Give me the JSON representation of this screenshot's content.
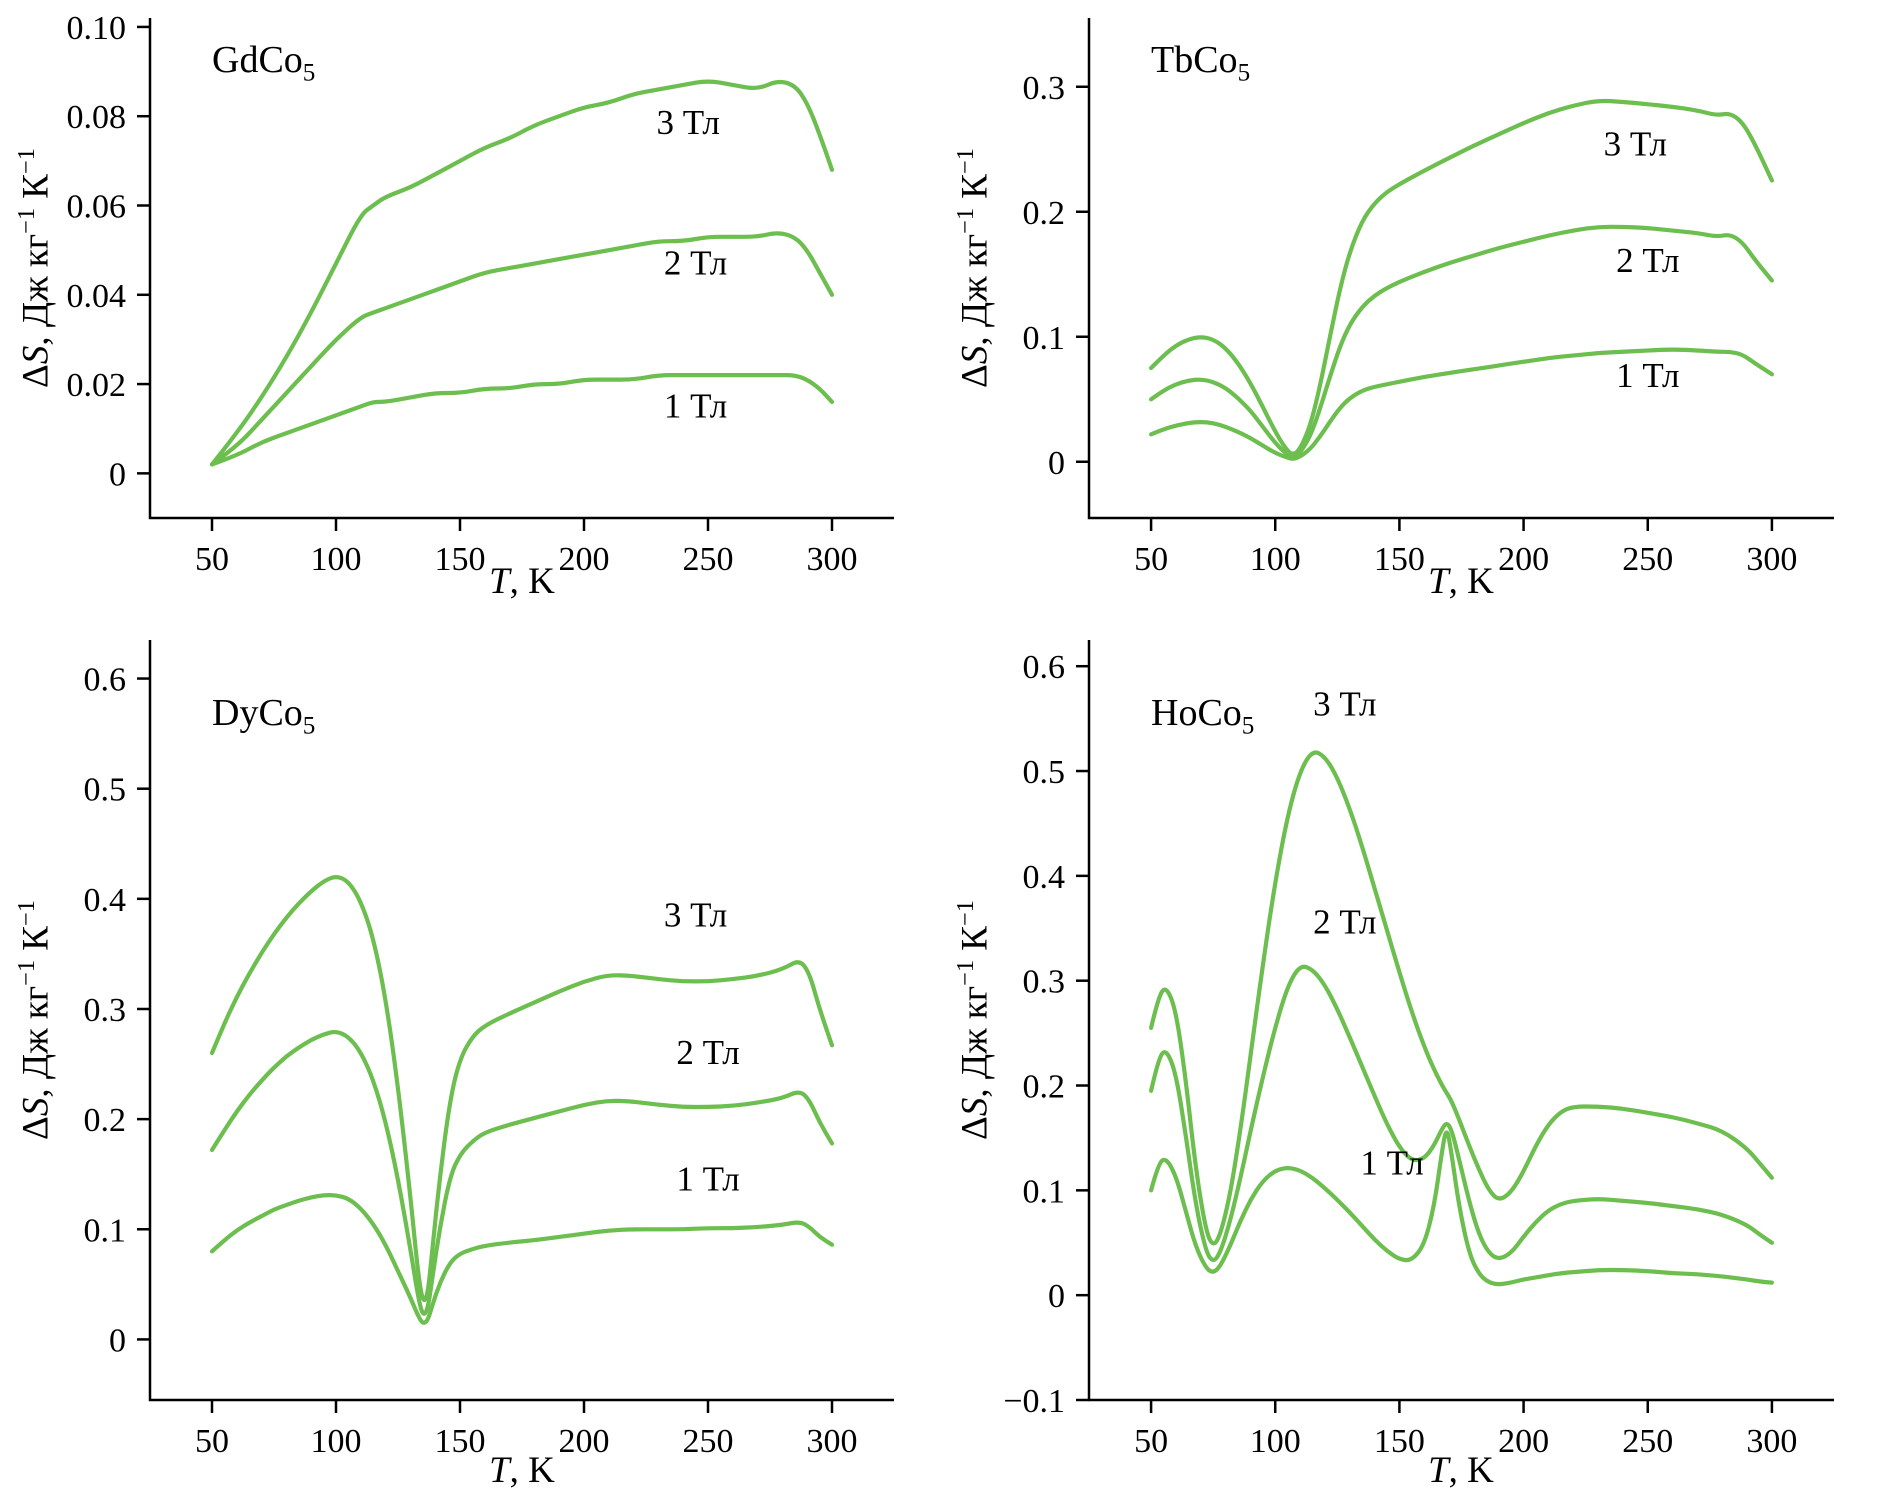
{
  "figure": {
    "background": "#ffffff",
    "curve_color": "#6cbe4e",
    "axis_color": "#000000",
    "ylabel": {
      "delta": "Δ",
      "s": "S",
      "unit_a": ", Дж кг",
      "sup_a": "−1",
      "unit_b": " К",
      "sup_b": "−1"
    },
    "xlabel": {
      "t": "T",
      "rest": ", K"
    }
  },
  "chart_data": [
    {
      "type": "line",
      "title_main": "GdCo",
      "title_sub": "5",
      "xlabel": "T, K",
      "ylabel": "ΔS, Дж кг−1 К−1",
      "grid": false,
      "legend": "inline-annotations",
      "xlim": [
        25,
        325
      ],
      "ylim": [
        -0.01,
        0.102
      ],
      "xtick_values": [
        50,
        100,
        150,
        200,
        250,
        300
      ],
      "xtick_labels": [
        "50",
        "100",
        "150",
        "200",
        "250",
        "300"
      ],
      "ytick_values": [
        0,
        0.02,
        0.04,
        0.06,
        0.08,
        0.1
      ],
      "ytick_labels": [
        "0",
        "0.02",
        "0.04",
        "0.06",
        "0.08",
        "0.10"
      ],
      "x": [
        50,
        60,
        70,
        80,
        90,
        100,
        110,
        115,
        120,
        130,
        140,
        150,
        160,
        170,
        180,
        190,
        200,
        210,
        220,
        230,
        240,
        250,
        260,
        270,
        278,
        285,
        290,
        295,
        300
      ],
      "series": [
        {
          "name": "3 Тл",
          "key": "3t",
          "values": [
            0.002,
            0.009,
            0.017,
            0.026,
            0.036,
            0.047,
            0.058,
            0.06,
            0.062,
            0.064,
            0.067,
            0.07,
            0.073,
            0.075,
            0.078,
            0.08,
            0.082,
            0.083,
            0.085,
            0.086,
            0.087,
            0.088,
            0.087,
            0.086,
            0.088,
            0.087,
            0.083,
            0.076,
            0.068
          ]
        },
        {
          "name": "2 Тл",
          "key": "2t",
          "values": [
            0.002,
            0.006,
            0.012,
            0.018,
            0.024,
            0.03,
            0.035,
            0.036,
            0.037,
            0.039,
            0.041,
            0.043,
            0.045,
            0.046,
            0.047,
            0.048,
            0.049,
            0.05,
            0.051,
            0.052,
            0.052,
            0.053,
            0.053,
            0.053,
            0.054,
            0.053,
            0.05,
            0.045,
            0.04
          ]
        },
        {
          "name": "1 Тл",
          "key": "1t",
          "values": [
            0.002,
            0.004,
            0.007,
            0.009,
            0.011,
            0.013,
            0.015,
            0.016,
            0.016,
            0.017,
            0.018,
            0.018,
            0.019,
            0.019,
            0.02,
            0.02,
            0.021,
            0.021,
            0.021,
            0.022,
            0.022,
            0.022,
            0.022,
            0.022,
            0.022,
            0.022,
            0.021,
            0.019,
            0.016
          ]
        }
      ],
      "annotations": [
        {
          "text": "3 Тл",
          "x": 242,
          "y": 0.076
        },
        {
          "text": "2 Тл",
          "x": 245,
          "y": 0.0445
        },
        {
          "text": "1 Тл",
          "x": 245,
          "y": 0.0125
        }
      ]
    },
    {
      "type": "line",
      "title_main": "TbCo",
      "title_sub": "5",
      "xlabel": "T, K",
      "ylabel": "ΔS, Дж кг−1 К−1",
      "grid": false,
      "legend": "inline-annotations",
      "xlim": [
        25,
        325
      ],
      "ylim": [
        -0.045,
        0.355
      ],
      "xtick_values": [
        50,
        100,
        150,
        200,
        250,
        300
      ],
      "xtick_labels": [
        "50",
        "100",
        "150",
        "200",
        "250",
        "300"
      ],
      "ytick_values": [
        0,
        0.1,
        0.2,
        0.3
      ],
      "ytick_labels": [
        "0",
        "0.1",
        "0.2",
        "0.3"
      ],
      "x": [
        50,
        55,
        60,
        65,
        70,
        75,
        80,
        85,
        90,
        95,
        100,
        104,
        107,
        110,
        114,
        118,
        122,
        126,
        130,
        135,
        140,
        145,
        150,
        160,
        170,
        180,
        190,
        200,
        210,
        220,
        230,
        240,
        250,
        260,
        270,
        278,
        283,
        288,
        293,
        300
      ],
      "series": [
        {
          "name": "3 Тл",
          "key": "3t",
          "values": [
            0.075,
            0.085,
            0.093,
            0.098,
            0.1,
            0.098,
            0.091,
            0.079,
            0.063,
            0.044,
            0.024,
            0.011,
            0.005,
            0.01,
            0.028,
            0.06,
            0.1,
            0.138,
            0.168,
            0.193,
            0.207,
            0.216,
            0.222,
            0.233,
            0.243,
            0.253,
            0.262,
            0.271,
            0.279,
            0.285,
            0.289,
            0.288,
            0.286,
            0.284,
            0.281,
            0.277,
            0.279,
            0.272,
            0.255,
            0.225
          ]
        },
        {
          "name": "2 Тл",
          "key": "2t",
          "values": [
            0.05,
            0.057,
            0.062,
            0.065,
            0.066,
            0.064,
            0.059,
            0.051,
            0.041,
            0.028,
            0.015,
            0.007,
            0.004,
            0.007,
            0.02,
            0.042,
            0.068,
            0.092,
            0.11,
            0.124,
            0.133,
            0.139,
            0.144,
            0.152,
            0.159,
            0.165,
            0.171,
            0.176,
            0.181,
            0.185,
            0.188,
            0.188,
            0.187,
            0.185,
            0.183,
            0.18,
            0.182,
            0.176,
            0.162,
            0.145
          ]
        },
        {
          "name": "1 Тл",
          "key": "1t",
          "values": [
            0.022,
            0.026,
            0.029,
            0.031,
            0.032,
            0.031,
            0.028,
            0.024,
            0.019,
            0.013,
            0.007,
            0.004,
            0.002,
            0.004,
            0.01,
            0.02,
            0.032,
            0.043,
            0.051,
            0.057,
            0.06,
            0.062,
            0.064,
            0.068,
            0.071,
            0.074,
            0.077,
            0.08,
            0.083,
            0.085,
            0.087,
            0.088,
            0.089,
            0.09,
            0.089,
            0.088,
            0.088,
            0.086,
            0.079,
            0.07
          ]
        }
      ],
      "annotations": [
        {
          "text": "3 Тл",
          "x": 245,
          "y": 0.245
        },
        {
          "text": "2 Тл",
          "x": 250,
          "y": 0.152
        },
        {
          "text": "1 Тл",
          "x": 250,
          "y": 0.06
        }
      ]
    },
    {
      "type": "line",
      "title_main": "DyCo",
      "title_sub": "5",
      "xlabel": "T, K",
      "ylabel": "ΔS, Дж кг−1 К−1",
      "grid": false,
      "legend": "inline-annotations",
      "xlim": [
        25,
        325
      ],
      "ylim": [
        -0.055,
        0.635
      ],
      "xtick_values": [
        50,
        100,
        150,
        200,
        250,
        300
      ],
      "xtick_labels": [
        "50",
        "100",
        "150",
        "200",
        "250",
        "300"
      ],
      "ytick_values": [
        0,
        0.1,
        0.2,
        0.3,
        0.4,
        0.5,
        0.6
      ],
      "ytick_labels": [
        "0",
        "0.1",
        "0.2",
        "0.3",
        "0.4",
        "0.5",
        "0.6"
      ],
      "x": [
        50,
        55,
        60,
        65,
        70,
        75,
        80,
        85,
        90,
        95,
        100,
        105,
        110,
        115,
        120,
        125,
        130,
        133,
        135,
        137,
        139,
        142,
        146,
        150,
        155,
        160,
        170,
        180,
        190,
        200,
        210,
        220,
        230,
        240,
        250,
        260,
        270,
        280,
        287,
        291,
        295,
        300
      ],
      "series": [
        {
          "name": "3 Тл",
          "key": "3t",
          "values": [
            0.26,
            0.287,
            0.311,
            0.332,
            0.351,
            0.368,
            0.383,
            0.396,
            0.407,
            0.416,
            0.421,
            0.416,
            0.398,
            0.365,
            0.31,
            0.23,
            0.13,
            0.062,
            0.033,
            0.04,
            0.085,
            0.15,
            0.218,
            0.255,
            0.275,
            0.285,
            0.296,
            0.306,
            0.316,
            0.325,
            0.331,
            0.33,
            0.327,
            0.325,
            0.325,
            0.327,
            0.33,
            0.336,
            0.345,
            0.332,
            0.3,
            0.267
          ]
        },
        {
          "name": "2 Тл",
          "key": "2t",
          "values": [
            0.172,
            0.19,
            0.207,
            0.222,
            0.235,
            0.247,
            0.257,
            0.265,
            0.272,
            0.277,
            0.28,
            0.275,
            0.261,
            0.236,
            0.198,
            0.146,
            0.082,
            0.04,
            0.021,
            0.027,
            0.058,
            0.103,
            0.148,
            0.168,
            0.18,
            0.188,
            0.195,
            0.201,
            0.207,
            0.213,
            0.217,
            0.216,
            0.213,
            0.211,
            0.211,
            0.212,
            0.215,
            0.219,
            0.226,
            0.217,
            0.197,
            0.178
          ]
        },
        {
          "name": "1 Тл",
          "key": "1t",
          "values": [
            0.08,
            0.09,
            0.099,
            0.106,
            0.112,
            0.118,
            0.122,
            0.126,
            0.129,
            0.131,
            0.131,
            0.128,
            0.119,
            0.105,
            0.086,
            0.062,
            0.038,
            0.022,
            0.014,
            0.017,
            0.032,
            0.052,
            0.07,
            0.078,
            0.082,
            0.085,
            0.088,
            0.09,
            0.093,
            0.096,
            0.099,
            0.1,
            0.1,
            0.1,
            0.101,
            0.101,
            0.102,
            0.104,
            0.107,
            0.102,
            0.093,
            0.086
          ]
        }
      ],
      "annotations": [
        {
          "text": "3 Тл",
          "x": 245,
          "y": 0.375
        },
        {
          "text": "2 Тл",
          "x": 250,
          "y": 0.25
        },
        {
          "text": "1 Тл",
          "x": 250,
          "y": 0.135
        }
      ]
    },
    {
      "type": "line",
      "title_main": "HoCo",
      "title_sub": "5",
      "xlabel": "T, K",
      "ylabel": "ΔS, Дж кг−1 К−1",
      "grid": false,
      "legend": "inline-annotations",
      "xlim": [
        25,
        325
      ],
      "ylim": [
        -0.1,
        0.625
      ],
      "xtick_values": [
        50,
        100,
        150,
        200,
        250,
        300
      ],
      "xtick_labels": [
        "50",
        "100",
        "150",
        "200",
        "250",
        "300"
      ],
      "ytick_values": [
        -0.1,
        0,
        0.1,
        0.2,
        0.3,
        0.4,
        0.5,
        0.6
      ],
      "ytick_labels": [
        "−0.1",
        "0",
        "0.1",
        "0.2",
        "0.3",
        "0.4",
        "0.5",
        "0.6"
      ],
      "x": [
        50,
        53,
        56,
        60,
        64,
        68,
        72,
        75,
        78,
        82,
        86,
        90,
        95,
        100,
        105,
        110,
        115,
        120,
        125,
        130,
        135,
        140,
        145,
        150,
        155,
        160,
        164,
        167,
        169,
        171,
        174,
        178,
        182,
        186,
        190,
        195,
        200,
        205,
        210,
        215,
        220,
        230,
        240,
        250,
        260,
        270,
        280,
        290,
        295,
        300
      ],
      "series": [
        {
          "name": "3 Тл",
          "key": "3t",
          "values": [
            0.255,
            0.285,
            0.295,
            0.272,
            0.205,
            0.12,
            0.062,
            0.046,
            0.058,
            0.098,
            0.158,
            0.228,
            0.315,
            0.395,
            0.458,
            0.5,
            0.52,
            0.514,
            0.494,
            0.464,
            0.428,
            0.388,
            0.348,
            0.308,
            0.27,
            0.237,
            0.215,
            0.201,
            0.193,
            0.185,
            0.168,
            0.143,
            0.12,
            0.1,
            0.09,
            0.098,
            0.118,
            0.143,
            0.163,
            0.175,
            0.18,
            0.18,
            0.178,
            0.174,
            0.17,
            0.164,
            0.157,
            0.14,
            0.126,
            0.112
          ]
        },
        {
          "name": "2 Тл",
          "key": "2t",
          "values": [
            0.195,
            0.226,
            0.235,
            0.212,
            0.152,
            0.086,
            0.042,
            0.031,
            0.041,
            0.072,
            0.112,
            0.156,
            0.208,
            0.256,
            0.295,
            0.315,
            0.311,
            0.296,
            0.273,
            0.246,
            0.218,
            0.19,
            0.163,
            0.141,
            0.128,
            0.13,
            0.143,
            0.158,
            0.165,
            0.158,
            0.13,
            0.09,
            0.058,
            0.04,
            0.034,
            0.04,
            0.056,
            0.07,
            0.081,
            0.087,
            0.09,
            0.092,
            0.09,
            0.088,
            0.085,
            0.082,
            0.077,
            0.067,
            0.058,
            0.05
          ]
        },
        {
          "name": "1 Тл",
          "key": "1t",
          "values": [
            0.1,
            0.126,
            0.131,
            0.114,
            0.08,
            0.046,
            0.026,
            0.021,
            0.028,
            0.048,
            0.071,
            0.091,
            0.109,
            0.119,
            0.122,
            0.119,
            0.112,
            0.102,
            0.091,
            0.079,
            0.066,
            0.053,
            0.042,
            0.034,
            0.033,
            0.048,
            0.085,
            0.135,
            0.162,
            0.135,
            0.085,
            0.04,
            0.02,
            0.012,
            0.01,
            0.012,
            0.015,
            0.017,
            0.019,
            0.021,
            0.022,
            0.024,
            0.024,
            0.023,
            0.021,
            0.02,
            0.018,
            0.015,
            0.013,
            0.012
          ]
        }
      ],
      "annotations": [
        {
          "text": "3 Тл",
          "x": 128,
          "y": 0.553
        },
        {
          "text": "2 Тл",
          "x": 128,
          "y": 0.345
        },
        {
          "text": "1 Тл",
          "x": 147,
          "y": 0.115
        }
      ]
    }
  ]
}
